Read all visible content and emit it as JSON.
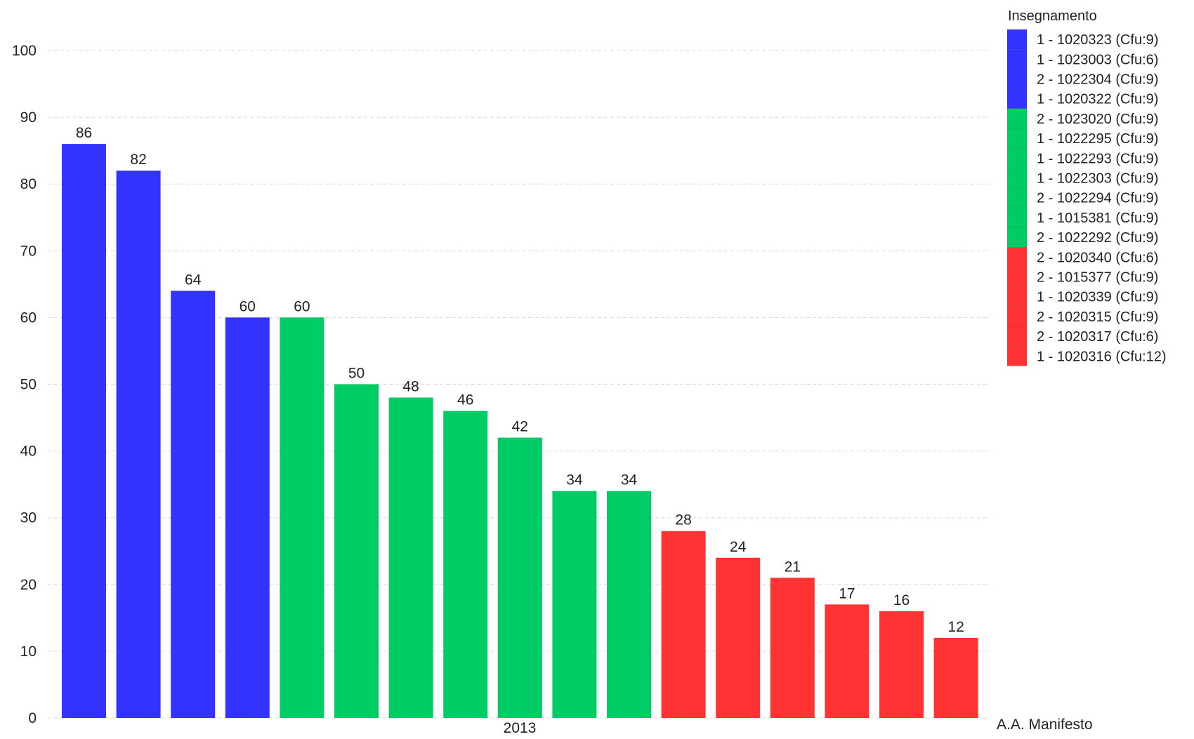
{
  "chart_data": {
    "type": "bar",
    "xlabel": "A.A. Manifesto",
    "category_label": "2013",
    "ylim": [
      0,
      100
    ],
    "yticks": [
      0,
      10,
      20,
      30,
      40,
      50,
      60,
      70,
      80,
      90,
      100
    ],
    "grid": true,
    "legend": {
      "title": "Insegnamento",
      "position": "top-right"
    },
    "colors": {
      "blue": "#3333ff",
      "green": "#00cc66",
      "red": "#ff3333"
    },
    "series": [
      {
        "name": "1 - 1020323 (Cfu:9)",
        "value": 86,
        "color": "#3333ff"
      },
      {
        "name": "1 - 1023003 (Cfu:6)",
        "value": 82,
        "color": "#3333ff"
      },
      {
        "name": "2 - 1022304 (Cfu:9)",
        "value": 64,
        "color": "#3333ff"
      },
      {
        "name": "1 - 1020322 (Cfu:9)",
        "value": 60,
        "color": "#3333ff"
      },
      {
        "name": "2 - 1023020 (Cfu:9)",
        "value": 60,
        "color": "#00cc66"
      },
      {
        "name": "1 - 1022295 (Cfu:9)",
        "value": 50,
        "color": "#00cc66"
      },
      {
        "name": "1 - 1022293 (Cfu:9)",
        "value": 48,
        "color": "#00cc66"
      },
      {
        "name": "1 - 1022303 (Cfu:9)",
        "value": 46,
        "color": "#00cc66"
      },
      {
        "name": "2 - 1022294 (Cfu:9)",
        "value": 42,
        "color": "#00cc66"
      },
      {
        "name": "1 - 1015381 (Cfu:9)",
        "value": 34,
        "color": "#00cc66"
      },
      {
        "name": "2 - 1022292 (Cfu:9)",
        "value": 34,
        "color": "#00cc66"
      },
      {
        "name": "2 - 1020340 (Cfu:6)",
        "value": 28,
        "color": "#ff3333"
      },
      {
        "name": "2 - 1015377 (Cfu:9)",
        "value": 24,
        "color": "#ff3333"
      },
      {
        "name": "1 - 1020339 (Cfu:9)",
        "value": 21,
        "color": "#ff3333"
      },
      {
        "name": "2 - 1020315 (Cfu:9)",
        "value": 17,
        "color": "#ff3333"
      },
      {
        "name": "2 - 1020317 (Cfu:6)",
        "value": 16,
        "color": "#ff3333"
      },
      {
        "name": "1 - 1020316 (Cfu:12)",
        "value": 12,
        "color": "#ff3333"
      }
    ]
  }
}
